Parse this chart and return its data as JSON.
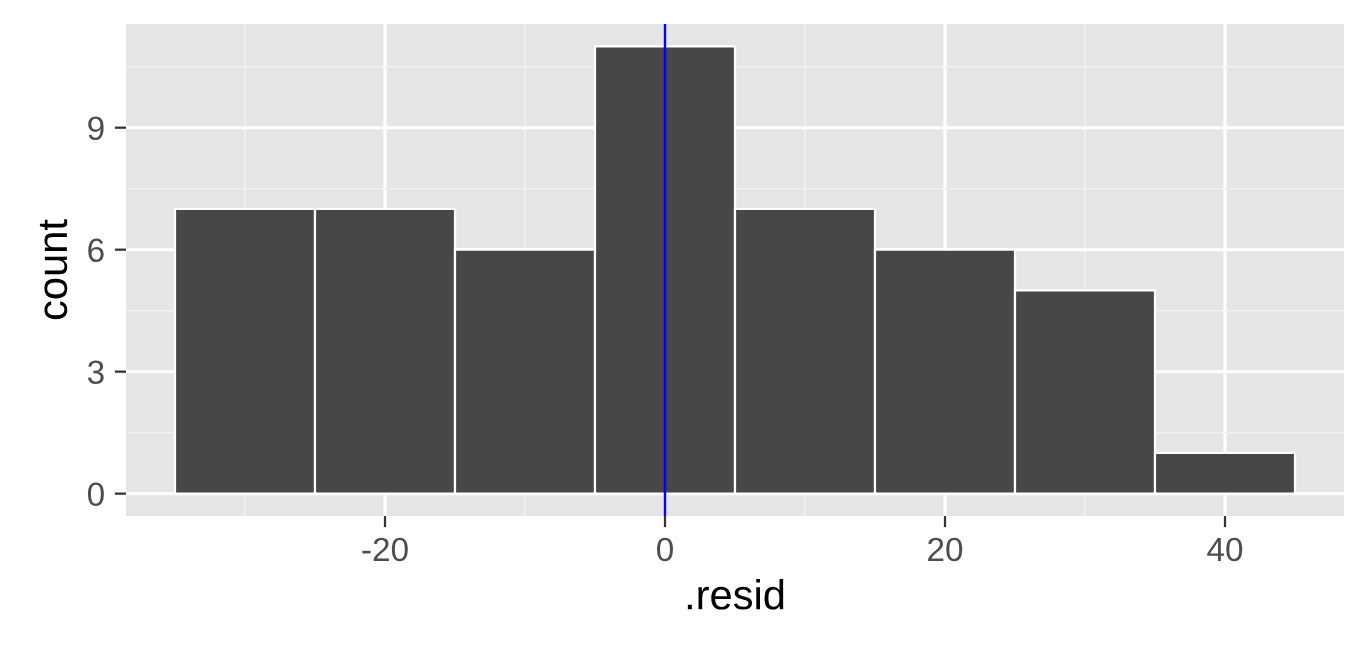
{
  "chart_data": {
    "type": "histogram",
    "xlabel": ".resid",
    "ylabel": "count",
    "bins": [
      -35,
      -25,
      -15,
      -5,
      5,
      15,
      25,
      35,
      45
    ],
    "values": [
      7,
      7,
      6,
      11,
      7,
      6,
      5,
      1
    ],
    "color": "#474747",
    "xlim": [
      -38.5,
      48.5
    ],
    "ylim": [
      -0.55,
      11.55
    ],
    "xticks": [
      -20,
      0,
      20,
      40
    ],
    "yticks": [
      0,
      3,
      6,
      9
    ],
    "grid": true,
    "ref_lines": [
      {
        "axis": "x",
        "value": 0,
        "color": "#0000ff"
      }
    ]
  }
}
